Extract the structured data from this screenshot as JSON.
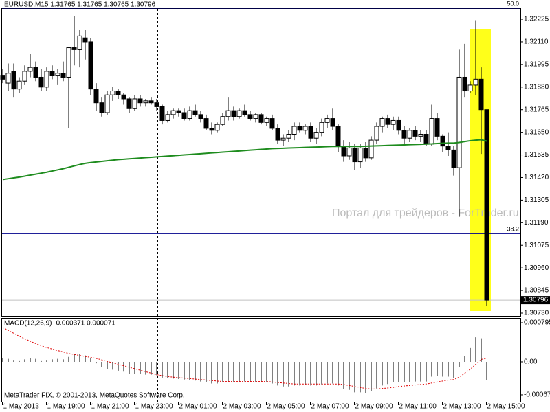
{
  "chart_data": [
    {
      "type": "candlestick",
      "title": "EURUSD,M15  1.31765 1.31765 1.30765 1.30796",
      "watermark": "Портал для трейдеров - ForTrader.ru",
      "categories": [
        "1 May 2013",
        null,
        null,
        null,
        null,
        null,
        null,
        null,
        "1 May 19:00",
        null,
        null,
        null,
        null,
        null,
        null,
        null,
        "1 May 21:00",
        null,
        null,
        null,
        null,
        null,
        null,
        null,
        "1 May 23:00",
        null,
        null,
        null,
        null,
        null,
        null,
        null,
        "2 May 01:00",
        null,
        null,
        null,
        null,
        null,
        null,
        null,
        "2 May 03:00",
        null,
        null,
        null,
        null,
        null,
        null,
        null,
        "2 May 05:00",
        null,
        null,
        null,
        null,
        null,
        null,
        null,
        "2 May 07:00",
        null,
        null,
        null,
        null,
        null,
        null,
        null,
        "2 May 09:00",
        null,
        null,
        null,
        null,
        null,
        null,
        null,
        "2 May 11:00",
        null,
        null,
        null,
        null,
        null,
        null,
        null,
        "2 May 13:00",
        null,
        null,
        null,
        null,
        null,
        null,
        null,
        "2 May 15:00"
      ],
      "open": [
        1.3194,
        1.319,
        1.3196,
        1.3187,
        1.3191,
        1.3196,
        1.3198,
        1.3193,
        1.3188,
        1.3196,
        1.3194,
        1.3195,
        1.3193,
        1.3208,
        1.3207,
        1.3213,
        1.3211,
        1.3187,
        1.318,
        1.3175,
        1.3184,
        1.3186,
        1.3184,
        1.3182,
        1.3177,
        1.3182,
        1.318,
        1.3181,
        1.318,
        1.3178,
        1.3171,
        1.3174,
        1.3176,
        1.3175,
        1.3172,
        1.3176,
        1.3174,
        1.3172,
        1.3167,
        1.3166,
        1.3169,
        1.3173,
        1.3176,
        1.3173,
        1.3176,
        1.3174,
        1.3172,
        1.3174,
        1.317,
        1.3172,
        1.3167,
        1.3161,
        1.3162,
        1.3164,
        1.3168,
        1.3166,
        1.3168,
        1.3162,
        1.3165,
        1.317,
        1.3172,
        1.3168,
        1.3158,
        1.3153,
        1.3157,
        1.315,
        1.3157,
        1.3152,
        1.3161,
        1.3168,
        1.3172,
        1.3169,
        1.3171,
        1.3166,
        1.3162,
        1.3166,
        1.3163,
        1.3164,
        1.3159,
        1.3172,
        1.3163,
        1.3158,
        1.3156,
        1.3147,
        1.3193,
        1.3186,
        1.3189,
        1.3192,
        1.31765
      ],
      "high": [
        1.3197,
        1.32,
        1.32,
        1.3193,
        1.3199,
        1.3205,
        1.3201,
        1.3197,
        1.3198,
        1.3199,
        1.3197,
        1.3201,
        1.3208,
        1.3224,
        1.3217,
        1.3217,
        1.3213,
        1.319,
        1.3183,
        1.3186,
        1.3188,
        1.3187,
        1.3185,
        1.3183,
        1.3184,
        1.3184,
        1.3182,
        1.3183,
        1.3182,
        1.3179,
        1.3176,
        1.3177,
        1.3177,
        1.3177,
        1.3178,
        1.3179,
        1.3176,
        1.3174,
        1.317,
        1.317,
        1.3175,
        1.3183,
        1.3178,
        1.3177,
        1.3179,
        1.3176,
        1.3175,
        1.3175,
        1.3173,
        1.3174,
        1.3169,
        1.3164,
        1.3166,
        1.317,
        1.317,
        1.3169,
        1.317,
        1.3167,
        1.3172,
        1.3174,
        1.3177,
        1.3169,
        1.3161,
        1.316,
        1.3159,
        1.3159,
        1.316,
        1.3163,
        1.317,
        1.3173,
        1.3174,
        1.3173,
        1.3173,
        1.3168,
        1.3167,
        1.3168,
        1.3166,
        1.3166,
        1.3179,
        1.3175,
        1.3164,
        1.3165,
        1.3158,
        1.3207,
        1.321,
        1.3191,
        1.3222,
        1.3198,
        1.31765
      ],
      "low": [
        1.319,
        1.3186,
        1.3183,
        1.3185,
        1.3189,
        1.3193,
        1.3191,
        1.3186,
        1.3186,
        1.3192,
        1.3189,
        1.3191,
        1.3167,
        1.3199,
        1.3198,
        1.3202,
        1.3184,
        1.3176,
        1.3173,
        1.3174,
        1.3181,
        1.3182,
        1.3179,
        1.3175,
        1.3176,
        1.3178,
        1.3178,
        1.3179,
        1.3176,
        1.3169,
        1.317,
        1.3172,
        1.3173,
        1.3171,
        1.3171,
        1.3173,
        1.317,
        1.3166,
        1.3164,
        1.3165,
        1.3168,
        1.3171,
        1.3171,
        1.3172,
        1.3173,
        1.3171,
        1.317,
        1.3169,
        1.3168,
        1.3166,
        1.3159,
        1.3158,
        1.316,
        1.3161,
        1.3165,
        1.3164,
        1.316,
        1.3159,
        1.3163,
        1.3167,
        1.3166,
        1.3155,
        1.315,
        1.3151,
        1.3146,
        1.3147,
        1.315,
        1.3151,
        1.3159,
        1.3165,
        1.3167,
        1.3166,
        1.3164,
        1.3159,
        1.316,
        1.3161,
        1.316,
        1.3158,
        1.3158,
        1.3161,
        1.3155,
        1.3153,
        1.3143,
        1.3122,
        1.3183,
        1.3185,
        1.3184,
        1.3154,
        1.30765
      ],
      "close": [
        1.3192,
        1.3195,
        1.3187,
        1.3191,
        1.3196,
        1.3198,
        1.3193,
        1.3188,
        1.3196,
        1.3194,
        1.3195,
        1.3193,
        1.3208,
        1.3207,
        1.3214,
        1.3211,
        1.3187,
        1.318,
        1.3175,
        1.3184,
        1.3186,
        1.3184,
        1.3182,
        1.3177,
        1.3182,
        1.318,
        1.3181,
        1.318,
        1.3178,
        1.3171,
        1.3174,
        1.3176,
        1.3175,
        1.3172,
        1.3176,
        1.3174,
        1.3172,
        1.3167,
        1.3166,
        1.3169,
        1.3173,
        1.3176,
        1.3173,
        1.3176,
        1.3174,
        1.3172,
        1.3174,
        1.317,
        1.3172,
        1.3167,
        1.3161,
        1.3162,
        1.3164,
        1.3168,
        1.3166,
        1.3168,
        1.3162,
        1.3165,
        1.317,
        1.3172,
        1.3168,
        1.3158,
        1.3153,
        1.3157,
        1.315,
        1.3157,
        1.3152,
        1.3161,
        1.3168,
        1.3172,
        1.3169,
        1.3171,
        1.3166,
        1.3162,
        1.3166,
        1.3163,
        1.3164,
        1.3159,
        1.3172,
        1.3163,
        1.3158,
        1.3156,
        1.3147,
        1.3193,
        1.3186,
        1.3189,
        1.3192,
        1.31765,
        1.30796
      ],
      "ma": {
        "color": "#1e8c1e",
        "values": [
          1.3141,
          1.31414,
          1.31418,
          1.31422,
          1.31427,
          1.31432,
          1.31437,
          1.31442,
          1.31447,
          1.31453,
          1.31459,
          1.31465,
          1.31472,
          1.31479,
          1.31486,
          1.31492,
          1.31496,
          1.31499,
          1.31502,
          1.31505,
          1.31508,
          1.31511,
          1.31513,
          1.31515,
          1.31517,
          1.31519,
          1.31521,
          1.31523,
          1.31525,
          1.31527,
          1.31529,
          1.31531,
          1.31533,
          1.31535,
          1.31537,
          1.31539,
          1.31541,
          1.31543,
          1.31545,
          1.31547,
          1.31549,
          1.31551,
          1.31553,
          1.31555,
          1.31557,
          1.31559,
          1.31561,
          1.31563,
          1.31565,
          1.31567,
          1.31568,
          1.31569,
          1.3157,
          1.31571,
          1.31572,
          1.31573,
          1.31574,
          1.31575,
          1.31576,
          1.31577,
          1.31578,
          1.31578,
          1.31578,
          1.31578,
          1.31578,
          1.31578,
          1.31579,
          1.3158,
          1.31581,
          1.31582,
          1.31583,
          1.31584,
          1.31585,
          1.31586,
          1.31587,
          1.31588,
          1.31589,
          1.3159,
          1.31591,
          1.31593,
          1.31594,
          1.31595,
          1.31595,
          1.31598,
          1.31603,
          1.31607,
          1.3161,
          1.31612,
          1.31605
        ]
      },
      "fibo": [
        {
          "level": "50.0",
          "price": 1.32281
        },
        {
          "level": "38.2",
          "price": 1.31134
        }
      ],
      "bid": 1.30796,
      "ylim": [
        1.30716,
        1.32281
      ],
      "yticks": [
        1.32225,
        {
          "value": 1.3211,
          "label": "1.32110"
        },
        1.31995,
        {
          "value": 1.3188,
          "label": "1.31880"
        },
        1.31765,
        {
          "value": 1.3165,
          "label": "1.31650"
        },
        1.31535,
        {
          "value": 1.3142,
          "label": "1.31420"
        },
        1.31305,
        {
          "value": 1.3119,
          "label": "1.31190"
        },
        1.31075,
        {
          "value": 1.3096,
          "label": "1.30960"
        },
        1.30845,
        {
          "value": 1.3073,
          "label": "1.30730"
        }
      ]
    },
    {
      "type": "macd",
      "title": "MACD(12,26,9) -0.000371 0.000071",
      "footer": "MetaTrader FIX, © 2001-2013, MetaQuotes Software Corp.",
      "values": [
        8e-05,
        6e-05,
        4e-05,
        3e-05,
        5e-05,
        7e-05,
        6e-05,
        3e-05,
        4e-05,
        5e-05,
        6e-05,
        5e-05,
        0.0001,
        0.00015,
        0.00016,
        0.00013,
        8e-05,
        -3e-05,
        -0.0001,
        -0.00014,
        -0.00016,
        -0.00018,
        -0.0002,
        -0.00024,
        -0.00024,
        -0.00025,
        -0.00026,
        -0.00026,
        -0.00027,
        -0.00032,
        -0.00033,
        -0.00034,
        -0.00035,
        -0.00036,
        -0.00037,
        -0.00038,
        -0.0004,
        -0.00042,
        -0.00044,
        -0.00044,
        -0.00042,
        -0.00041,
        -0.00041,
        -0.0004,
        -0.0004,
        -0.00041,
        -0.00041,
        -0.00042,
        -0.00042,
        -0.00044,
        -0.00048,
        -0.0005,
        -0.0005,
        -0.00048,
        -0.00048,
        -0.00047,
        -0.00048,
        -0.00048,
        -0.00046,
        -0.00044,
        -0.00044,
        -0.00048,
        -0.00055,
        -0.00057,
        -0.00062,
        -0.00062,
        -0.00063,
        -0.0006,
        -0.00054,
        -0.00048,
        -0.00045,
        -0.00042,
        -0.00041,
        -0.00042,
        -0.00042,
        -0.0004,
        -0.0004,
        -0.0004,
        -0.0003,
        -0.00028,
        -0.0003,
        -0.0003,
        -0.00033,
        -0.0001,
        0.00012,
        0.00028,
        0.0005,
        0.00048,
        -0.000371
      ],
      "signal": {
        "color": "#e00000",
        "values": [
          0.0007,
          0.00064,
          0.00058,
          0.00052,
          0.00047,
          0.00042,
          0.00037,
          0.00033,
          0.00029,
          0.00026,
          0.00023,
          0.0002,
          0.00017,
          0.00015,
          0.00013,
          0.00011,
          9e-05,
          7e-05,
          4e-05,
          1e-05,
          -2e-05,
          -5e-05,
          -8e-05,
          -0.00011,
          -0.00014,
          -0.00017,
          -0.0002,
          -0.00023,
          -0.00026,
          -0.00028,
          -0.0003,
          -0.00031,
          -0.00032,
          -0.00033,
          -0.00034,
          -0.00035,
          -0.00036,
          -0.00037,
          -0.00038,
          -0.00039,
          -0.0004,
          -0.0004,
          -0.0004,
          -0.0004,
          -0.0004,
          -0.0004,
          -0.0004,
          -0.0004,
          -0.0004,
          -0.00041,
          -0.00042,
          -0.00043,
          -0.00044,
          -0.00045,
          -0.00045,
          -0.00045,
          -0.00045,
          -0.00045,
          -0.00045,
          -0.00045,
          -0.00045,
          -0.00045,
          -0.00046,
          -0.00048,
          -0.0005,
          -0.00052,
          -0.00054,
          -0.00055,
          -0.00055,
          -0.00054,
          -0.00053,
          -0.00052,
          -0.0005,
          -0.00049,
          -0.00048,
          -0.00047,
          -0.00046,
          -0.00045,
          -0.00043,
          -0.00041,
          -0.00039,
          -0.00037,
          -0.00036,
          -0.00031,
          -0.00023,
          -0.00015,
          -5e-05,
          5e-05,
          7.1e-05
        ]
      },
      "ylim": [
        -0.00081,
        0.000893
      ],
      "yticks": [
        0.000795,
        {
          "value": 0,
          "label": "0.00"
        },
        -0.00067
      ]
    }
  ]
}
